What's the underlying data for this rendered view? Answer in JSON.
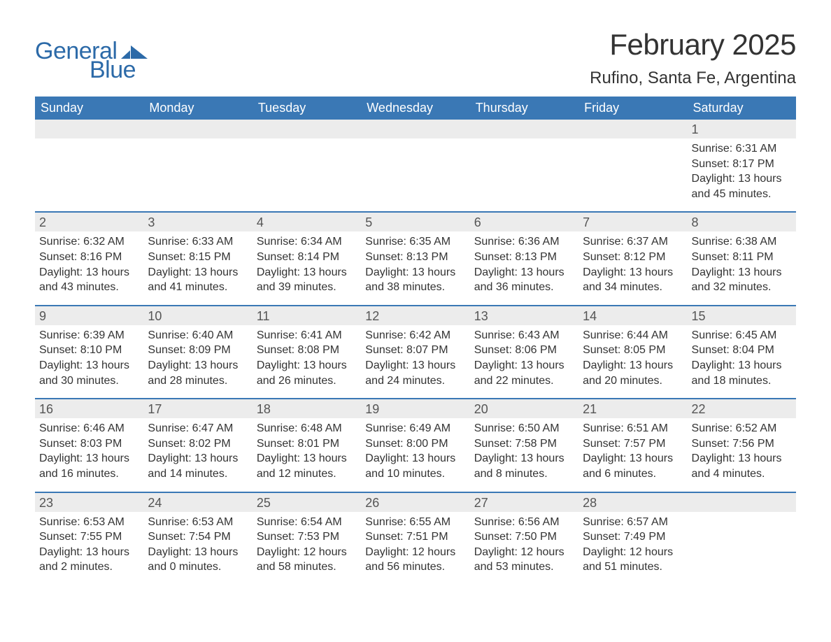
{
  "logo": {
    "word1": "General",
    "word2": "Blue",
    "shape_color": "#2c6aa8",
    "text_color": "#2c6aa8"
  },
  "header": {
    "month_title": "February 2025",
    "location": "Rufino, Santa Fe, Argentina"
  },
  "colors": {
    "header_bg": "#3a78b5",
    "header_text": "#ffffff",
    "strip_bg": "#ececec",
    "strip_text": "#555555",
    "body_text": "#333333",
    "week_divider": "#3a78b5",
    "page_bg": "#ffffff"
  },
  "fonts": {
    "base_family": "Arial, Helvetica, sans-serif",
    "month_title_size_pt": 32,
    "location_size_pt": 18,
    "dow_size_pt": 14,
    "daynum_size_pt": 14,
    "body_size_pt": 12
  },
  "days_of_week": [
    "Sunday",
    "Monday",
    "Tuesday",
    "Wednesday",
    "Thursday",
    "Friday",
    "Saturday"
  ],
  "labels": {
    "sunrise": "Sunrise:",
    "sunset": "Sunset:",
    "daylight": "Daylight:"
  },
  "weeks": [
    [
      {
        "day": null
      },
      {
        "day": null
      },
      {
        "day": null
      },
      {
        "day": null
      },
      {
        "day": null
      },
      {
        "day": null
      },
      {
        "day": "1",
        "sunrise": "6:31 AM",
        "sunset": "8:17 PM",
        "daylight_l1": "13 hours",
        "daylight_l2": "and 45 minutes."
      }
    ],
    [
      {
        "day": "2",
        "sunrise": "6:32 AM",
        "sunset": "8:16 PM",
        "daylight_l1": "13 hours",
        "daylight_l2": "and 43 minutes."
      },
      {
        "day": "3",
        "sunrise": "6:33 AM",
        "sunset": "8:15 PM",
        "daylight_l1": "13 hours",
        "daylight_l2": "and 41 minutes."
      },
      {
        "day": "4",
        "sunrise": "6:34 AM",
        "sunset": "8:14 PM",
        "daylight_l1": "13 hours",
        "daylight_l2": "and 39 minutes."
      },
      {
        "day": "5",
        "sunrise": "6:35 AM",
        "sunset": "8:13 PM",
        "daylight_l1": "13 hours",
        "daylight_l2": "and 38 minutes."
      },
      {
        "day": "6",
        "sunrise": "6:36 AM",
        "sunset": "8:13 PM",
        "daylight_l1": "13 hours",
        "daylight_l2": "and 36 minutes."
      },
      {
        "day": "7",
        "sunrise": "6:37 AM",
        "sunset": "8:12 PM",
        "daylight_l1": "13 hours",
        "daylight_l2": "and 34 minutes."
      },
      {
        "day": "8",
        "sunrise": "6:38 AM",
        "sunset": "8:11 PM",
        "daylight_l1": "13 hours",
        "daylight_l2": "and 32 minutes."
      }
    ],
    [
      {
        "day": "9",
        "sunrise": "6:39 AM",
        "sunset": "8:10 PM",
        "daylight_l1": "13 hours",
        "daylight_l2": "and 30 minutes."
      },
      {
        "day": "10",
        "sunrise": "6:40 AM",
        "sunset": "8:09 PM",
        "daylight_l1": "13 hours",
        "daylight_l2": "and 28 minutes."
      },
      {
        "day": "11",
        "sunrise": "6:41 AM",
        "sunset": "8:08 PM",
        "daylight_l1": "13 hours",
        "daylight_l2": "and 26 minutes."
      },
      {
        "day": "12",
        "sunrise": "6:42 AM",
        "sunset": "8:07 PM",
        "daylight_l1": "13 hours",
        "daylight_l2": "and 24 minutes."
      },
      {
        "day": "13",
        "sunrise": "6:43 AM",
        "sunset": "8:06 PM",
        "daylight_l1": "13 hours",
        "daylight_l2": "and 22 minutes."
      },
      {
        "day": "14",
        "sunrise": "6:44 AM",
        "sunset": "8:05 PM",
        "daylight_l1": "13 hours",
        "daylight_l2": "and 20 minutes."
      },
      {
        "day": "15",
        "sunrise": "6:45 AM",
        "sunset": "8:04 PM",
        "daylight_l1": "13 hours",
        "daylight_l2": "and 18 minutes."
      }
    ],
    [
      {
        "day": "16",
        "sunrise": "6:46 AM",
        "sunset": "8:03 PM",
        "daylight_l1": "13 hours",
        "daylight_l2": "and 16 minutes."
      },
      {
        "day": "17",
        "sunrise": "6:47 AM",
        "sunset": "8:02 PM",
        "daylight_l1": "13 hours",
        "daylight_l2": "and 14 minutes."
      },
      {
        "day": "18",
        "sunrise": "6:48 AM",
        "sunset": "8:01 PM",
        "daylight_l1": "13 hours",
        "daylight_l2": "and 12 minutes."
      },
      {
        "day": "19",
        "sunrise": "6:49 AM",
        "sunset": "8:00 PM",
        "daylight_l1": "13 hours",
        "daylight_l2": "and 10 minutes."
      },
      {
        "day": "20",
        "sunrise": "6:50 AM",
        "sunset": "7:58 PM",
        "daylight_l1": "13 hours",
        "daylight_l2": "and 8 minutes."
      },
      {
        "day": "21",
        "sunrise": "6:51 AM",
        "sunset": "7:57 PM",
        "daylight_l1": "13 hours",
        "daylight_l2": "and 6 minutes."
      },
      {
        "day": "22",
        "sunrise": "6:52 AM",
        "sunset": "7:56 PM",
        "daylight_l1": "13 hours",
        "daylight_l2": "and 4 minutes."
      }
    ],
    [
      {
        "day": "23",
        "sunrise": "6:53 AM",
        "sunset": "7:55 PM",
        "daylight_l1": "13 hours",
        "daylight_l2": "and 2 minutes."
      },
      {
        "day": "24",
        "sunrise": "6:53 AM",
        "sunset": "7:54 PM",
        "daylight_l1": "13 hours",
        "daylight_l2": "and 0 minutes."
      },
      {
        "day": "25",
        "sunrise": "6:54 AM",
        "sunset": "7:53 PM",
        "daylight_l1": "12 hours",
        "daylight_l2": "and 58 minutes."
      },
      {
        "day": "26",
        "sunrise": "6:55 AM",
        "sunset": "7:51 PM",
        "daylight_l1": "12 hours",
        "daylight_l2": "and 56 minutes."
      },
      {
        "day": "27",
        "sunrise": "6:56 AM",
        "sunset": "7:50 PM",
        "daylight_l1": "12 hours",
        "daylight_l2": "and 53 minutes."
      },
      {
        "day": "28",
        "sunrise": "6:57 AM",
        "sunset": "7:49 PM",
        "daylight_l1": "12 hours",
        "daylight_l2": "and 51 minutes."
      },
      {
        "day": null
      }
    ]
  ]
}
